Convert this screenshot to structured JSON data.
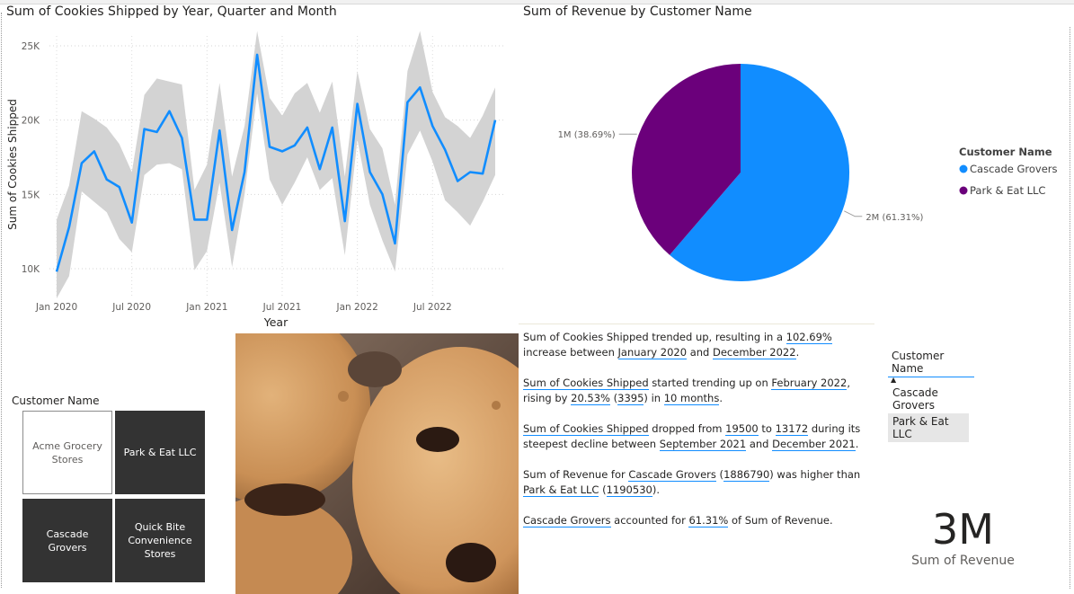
{
  "line_chart": {
    "title": "Sum of Cookies Shipped by Year, Quarter and Month",
    "ylabel": "Sum of Cookies Shipped",
    "xlabel": "Year",
    "y_ticks": [
      "25K",
      "20K",
      "15K",
      "10K"
    ],
    "x_ticks": [
      "Jan 2020",
      "Jul 2020",
      "Jan 2021",
      "Jul 2021",
      "Jan 2022",
      "Jul 2022"
    ]
  },
  "pie_chart": {
    "title": "Sum of Revenue by Customer Name",
    "legend_title": "Customer Name"
  },
  "chart_data": [
    {
      "type": "line",
      "title": "Sum of Cookies Shipped by Year, Quarter and Month",
      "xlabel": "Year",
      "ylabel": "Sum of Cookies Shipped",
      "ylim": [
        8000,
        26000
      ],
      "x": [
        "2020-01",
        "2020-02",
        "2020-03",
        "2020-04",
        "2020-05",
        "2020-06",
        "2020-07",
        "2020-08",
        "2020-09",
        "2020-10",
        "2020-11",
        "2020-12",
        "2021-01",
        "2021-02",
        "2021-03",
        "2021-04",
        "2021-05",
        "2021-06",
        "2021-07",
        "2021-08",
        "2021-09",
        "2021-10",
        "2021-11",
        "2021-12",
        "2022-01",
        "2022-02",
        "2022-03",
        "2022-04",
        "2022-05",
        "2022-06",
        "2022-07",
        "2022-08",
        "2022-09",
        "2022-10",
        "2022-11",
        "2022-12"
      ],
      "series": [
        {
          "values": [
            9800,
            12800,
            17100,
            17900,
            16000,
            15500,
            13100,
            19400,
            19200,
            20600,
            18800,
            13300,
            13300,
            19300,
            12600,
            16500,
            24400,
            18200,
            17900,
            18300,
            19500,
            16700,
            19500,
            13200,
            21100,
            16500,
            15000,
            11700,
            21200,
            22200,
            19600,
            18000,
            15900,
            16500,
            16400,
            20000
          ]
        },
        {
          "values_upper": [
            13300,
            15600,
            20600,
            20100,
            19500,
            18400,
            16500,
            21700,
            22800,
            22600,
            22400,
            15300,
            17000,
            22500,
            16200,
            19600,
            26000,
            21500,
            20300,
            21800,
            22500,
            20500,
            22600,
            16200,
            23300,
            19400,
            18100,
            14300,
            23300,
            26000,
            21900,
            20200,
            19600,
            18800,
            20300,
            22200
          ],
          "values_lower": [
            8000,
            9500,
            15200,
            14500,
            13800,
            12000,
            11100,
            16300,
            17000,
            17100,
            16700,
            9900,
            11200,
            15800,
            10100,
            15000,
            21800,
            16000,
            14300,
            15800,
            17500,
            15300,
            16100,
            10900,
            18700,
            14300,
            11900,
            9800,
            17700,
            19300,
            17200,
            14600,
            13800,
            12900,
            14500,
            16300
          ]
        }
      ]
    },
    {
      "type": "pie",
      "title": "Sum of Revenue by Customer Name",
      "series": [
        {
          "name": "Cascade Grovers",
          "values": [
            1886790
          ],
          "label": "2M (61.31%)",
          "color": "#118dff"
        },
        {
          "name": "Park & Eat LLC",
          "values": [
            1190530
          ],
          "label": "1M (38.69%)",
          "color": "#6b007b"
        }
      ],
      "legend_placement": "right"
    }
  ],
  "tile_slicer": {
    "header": "Customer Name",
    "tiles": [
      {
        "label": "Acme Grocery Stores",
        "selected": false
      },
      {
        "label": "Park & Eat LLC",
        "selected": true
      },
      {
        "label": "Cascade Grovers",
        "selected": true
      },
      {
        "label": "Quick Bite Convenience Stores",
        "selected": true
      }
    ]
  },
  "narrative": {
    "p1": {
      "a": "Sum of Cookies Shipped trended up, resulting in a ",
      "b": "102.69%",
      "c": " increase between ",
      "d": "January 2020",
      "e": " and ",
      "f": "December 2022",
      "g": "."
    },
    "p2": {
      "a": "Sum of Cookies Shipped",
      "b": " started trending up on ",
      "c": "February 2022",
      "d": ", rising by ",
      "e": "20.53%",
      "f": " (",
      "g": "3395",
      "h": ") in ",
      "i": "10 months",
      "j": "."
    },
    "p3": {
      "a": "Sum of Cookies Shipped",
      "b": " dropped from ",
      "c": "19500",
      "d": " to ",
      "e": "13172",
      "f": " during its steepest decline between ",
      "g": "September 2021",
      "h": " and ",
      "i": "December 2021",
      "j": "."
    },
    "p4": {
      "a": "Sum of Revenue for ",
      "b": "Cascade Grovers",
      "c": " (",
      "d": "1886790",
      "e": ") was higher than ",
      "f": "Park & Eat LLC",
      "g": " (",
      "h": "1190530",
      "i": ")."
    },
    "p5": {
      "a": "Cascade Grovers",
      "b": " accounted for ",
      "c": "61.31%",
      "d": " of Sum of Revenue."
    }
  },
  "list_slicer": {
    "header": "Customer Name",
    "items": [
      {
        "label": "Cascade Grovers",
        "selected": false
      },
      {
        "label": "Park & Eat LLC",
        "selected": true
      }
    ]
  },
  "kpi": {
    "value": "3M",
    "label": "Sum of Revenue"
  },
  "colors": {
    "accent": "#118dff",
    "purple": "#6b007b",
    "band": "#d3d3d3",
    "tile_dark": "#333333"
  }
}
